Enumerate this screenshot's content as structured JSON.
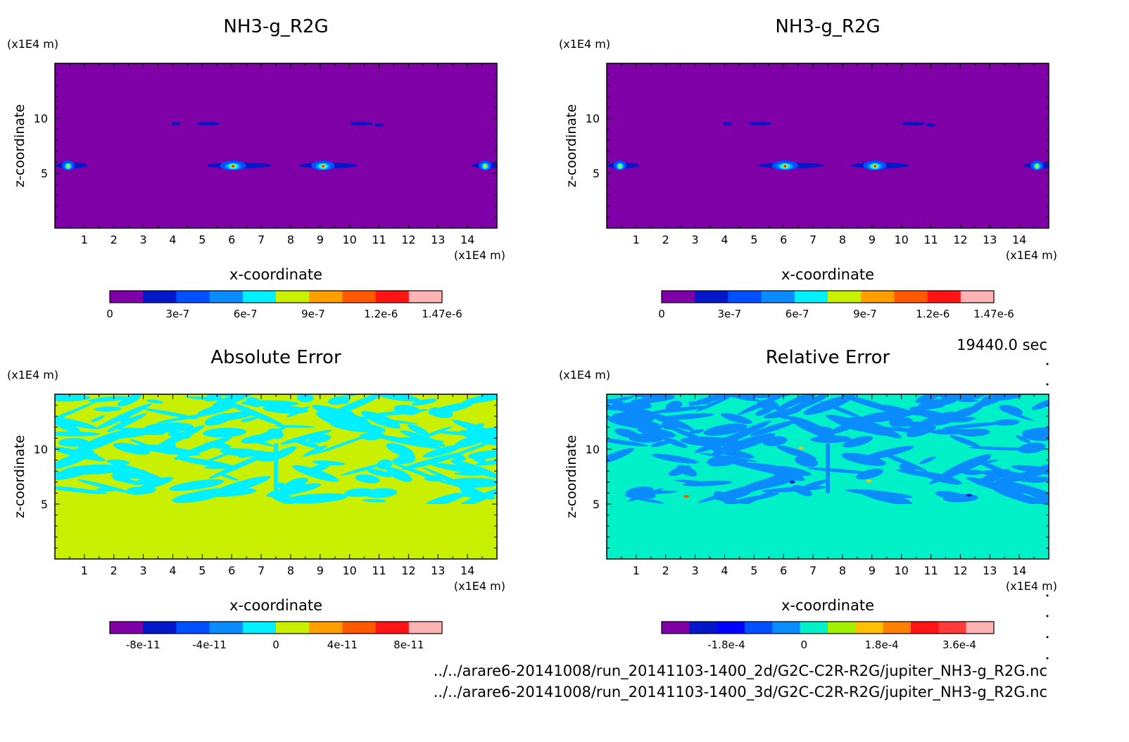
{
  "footer": {
    "time": "19440.0 sec",
    "path_2d": "../../arare6-20141008/run_20141103-1400_2d/G2C-C2R-R2G/jupiter_NH3-g_R2G.nc",
    "path_3d": "../../arare6-20141008/run_20141103-1400_3d/G2C-C2R-R2G/jupiter_NH3-g_R2G.nc"
  },
  "chart_data": [
    {
      "type": "heatmap",
      "title": "NH3-g_R2G",
      "xlabel": "x-coordinate",
      "ylabel": "z-coordinate",
      "x_unit": "(x1E4 m)",
      "y_unit": "(x1E4 m)",
      "xlim": [
        0,
        15
      ],
      "ylim": [
        0,
        15
      ],
      "x_ticks": [
        1,
        2,
        3,
        4,
        5,
        6,
        7,
        8,
        9,
        10,
        11,
        12,
        13,
        14
      ],
      "y_ticks": [
        5,
        10
      ],
      "background": "#7f00a7",
      "colorbar": {
        "colors": [
          "#7f00a7",
          "#0018c8",
          "#0050ff",
          "#0a8cff",
          "#00f0ff",
          "#c8f000",
          "#ffa000",
          "#ff5a00",
          "#ff1414",
          "#ffb4b4"
        ],
        "tick_labels": [
          "0",
          "3e-7",
          "6e-7",
          "9e-7",
          "1.2e-6",
          "1.47e-6"
        ],
        "range": [
          0,
          1.47e-06
        ]
      },
      "features": [
        {
          "kind": "plume",
          "x": 0.45,
          "z": 5.7,
          "length": 1.0,
          "peak": 9e-07
        },
        {
          "kind": "plume",
          "x": 6.05,
          "z": 5.7,
          "length": 2.0,
          "peak": 1.2e-06
        },
        {
          "kind": "plume",
          "x": 9.1,
          "z": 5.7,
          "length": 1.8,
          "peak": 1.2e-06
        },
        {
          "kind": "plume",
          "x": 14.6,
          "z": 5.7,
          "length": 1.0,
          "peak": 9e-07
        },
        {
          "kind": "streak",
          "x": 4.1,
          "z": 9.5,
          "length": 0.3
        },
        {
          "kind": "streak",
          "x": 5.2,
          "z": 9.5,
          "length": 0.8
        },
        {
          "kind": "streak",
          "x": 10.4,
          "z": 9.5,
          "length": 0.8
        },
        {
          "kind": "streak",
          "x": 11.0,
          "z": 9.4,
          "length": 0.3
        }
      ]
    },
    {
      "type": "heatmap",
      "title": "NH3-g_R2G",
      "xlabel": "x-coordinate",
      "ylabel": "z-coordinate",
      "x_unit": "(x1E4 m)",
      "y_unit": "(x1E4 m)",
      "xlim": [
        0,
        15
      ],
      "ylim": [
        0,
        15
      ],
      "x_ticks": [
        1,
        2,
        3,
        4,
        5,
        6,
        7,
        8,
        9,
        10,
        11,
        12,
        13,
        14
      ],
      "y_ticks": [
        5,
        10
      ],
      "background": "#7f00a7",
      "colorbar": {
        "colors": [
          "#7f00a7",
          "#0018c8",
          "#0050ff",
          "#0a8cff",
          "#00f0ff",
          "#c8f000",
          "#ffa000",
          "#ff5a00",
          "#ff1414",
          "#ffb4b4"
        ],
        "tick_labels": [
          "0",
          "3e-7",
          "6e-7",
          "9e-7",
          "1.2e-6",
          "1.47e-6"
        ],
        "range": [
          0,
          1.47e-06
        ]
      },
      "features": [
        {
          "kind": "plume",
          "x": 0.45,
          "z": 5.7,
          "length": 1.0,
          "peak": 9e-07
        },
        {
          "kind": "plume",
          "x": 6.05,
          "z": 5.7,
          "length": 2.0,
          "peak": 1.2e-06
        },
        {
          "kind": "plume",
          "x": 9.1,
          "z": 5.7,
          "length": 1.8,
          "peak": 1.2e-06
        },
        {
          "kind": "plume",
          "x": 14.6,
          "z": 5.7,
          "length": 1.0,
          "peak": 9e-07
        },
        {
          "kind": "streak",
          "x": 4.1,
          "z": 9.5,
          "length": 0.3
        },
        {
          "kind": "streak",
          "x": 5.2,
          "z": 9.5,
          "length": 0.8
        },
        {
          "kind": "streak",
          "x": 10.4,
          "z": 9.5,
          "length": 0.8
        },
        {
          "kind": "streak",
          "x": 11.0,
          "z": 9.4,
          "length": 0.3
        }
      ]
    },
    {
      "type": "heatmap",
      "title": "Absolute Error",
      "xlabel": "x-coordinate",
      "ylabel": "z-coordinate",
      "x_unit": "(x1E4 m)",
      "y_unit": "(x1E4 m)",
      "xlim": [
        0,
        15
      ],
      "ylim": [
        0,
        15
      ],
      "x_ticks": [
        1,
        2,
        3,
        4,
        5,
        6,
        7,
        8,
        9,
        10,
        11,
        12,
        13,
        14
      ],
      "y_ticks": [
        5,
        10
      ],
      "background": "#c8f000",
      "noise_color": "#00f0ff",
      "noise_zmin": 5,
      "colorbar": {
        "colors": [
          "#7f00a7",
          "#0018c8",
          "#0050ff",
          "#0a8cff",
          "#00f0ff",
          "#c8f000",
          "#ffa000",
          "#ff5a00",
          "#ff1414",
          "#ffb4b4"
        ],
        "tick_labels": [
          "-8e-11",
          "-4e-11",
          "0",
          "4e-11",
          "8e-11"
        ],
        "range": [
          -1e-10,
          1e-10
        ]
      }
    },
    {
      "type": "heatmap",
      "title": "Relative Error",
      "xlabel": "x-coordinate",
      "ylabel": "z-coordinate",
      "x_unit": "(x1E4 m)",
      "y_unit": "(x1E4 m)",
      "xlim": [
        0,
        15
      ],
      "ylim": [
        0,
        15
      ],
      "x_ticks": [
        1,
        2,
        3,
        4,
        5,
        6,
        7,
        8,
        9,
        10,
        11,
        12,
        13,
        14
      ],
      "y_ticks": [
        5,
        10
      ],
      "background": "#00f0c8",
      "noise_color": "#0a8cff",
      "noise_zmin": 5,
      "colorbar": {
        "colors": [
          "#7f00a7",
          "#0018c8",
          "#0000ff",
          "#0050ff",
          "#0a8cff",
          "#00f0c8",
          "#a0f000",
          "#ffc000",
          "#ff8000",
          "#ff1414",
          "#ff3c3c",
          "#ffb4b4"
        ],
        "tick_labels": [
          "-1.8e-4",
          "0",
          "1.8e-4",
          "3.6e-4"
        ],
        "range": [
          -0.00033,
          0.00044
        ]
      },
      "spots": [
        {
          "x": 2.7,
          "z": 5.7,
          "color": "#ff5a00"
        },
        {
          "x": 6.6,
          "z": 10.1,
          "color": "#ffc000"
        },
        {
          "x": 6.3,
          "z": 7.0,
          "color": "#0018c8"
        },
        {
          "x": 8.9,
          "z": 7.1,
          "color": "#ffc000"
        },
        {
          "x": 12.3,
          "z": 5.8,
          "color": "#0018c8"
        }
      ]
    }
  ]
}
